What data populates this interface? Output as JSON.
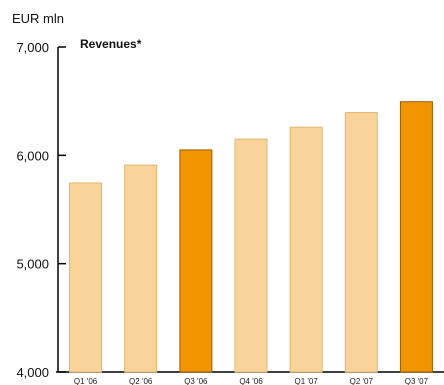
{
  "chart_data": {
    "type": "bar",
    "title": "Revenues*",
    "ylabel": "EUR mln",
    "xlabel": "",
    "categories": [
      "Q1 '06",
      "Q2 '06",
      "Q3 '06",
      "Q4 '06",
      "Q1 '07",
      "Q2 '07",
      "Q3 '07"
    ],
    "values": [
      5745,
      5910,
      6050,
      6150,
      6260,
      6395,
      6495
    ],
    "highlighted": [
      false,
      false,
      true,
      false,
      false,
      false,
      true
    ],
    "ylim": [
      4000,
      7000
    ],
    "yticks": [
      4000,
      5000,
      6000,
      7000
    ],
    "ytick_labels": [
      "4,000",
      "5,000",
      "6,000",
      "7,000"
    ],
    "grid": false,
    "colors": {
      "bar_normal": "#F8D49A",
      "bar_normal_stroke": "#E2B66F",
      "bar_highlight": "#F09400",
      "bar_highlight_stroke": "#9A5E00",
      "axis": "#000000"
    }
  }
}
